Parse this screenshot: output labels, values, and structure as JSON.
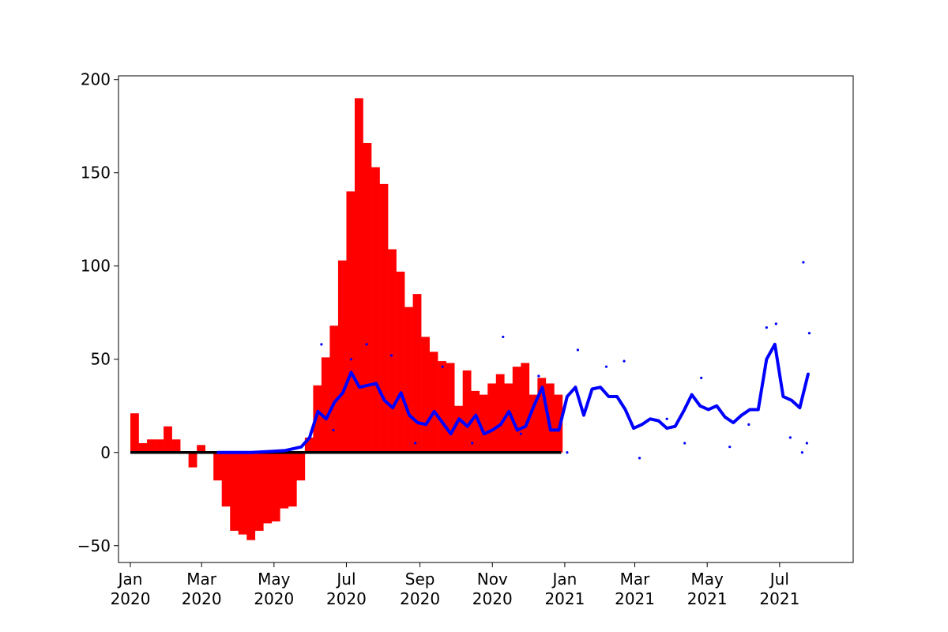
{
  "chart_data": {
    "type": "bar",
    "title": "",
    "xlabel": "",
    "ylabel": "",
    "grid": false,
    "legend": "none",
    "xlim": [
      "2019-12-22",
      "2021-09-01"
    ],
    "ylim": [
      -59,
      202
    ],
    "yticks": [
      -50,
      0,
      50,
      100,
      150,
      200
    ],
    "xticks": [
      {
        "date": "2020-01-01",
        "label_month": "Jan",
        "label_year": "2020"
      },
      {
        "date": "2020-03-01",
        "label_month": "Mar",
        "label_year": "2020"
      },
      {
        "date": "2020-05-01",
        "label_month": "May",
        "label_year": "2020"
      },
      {
        "date": "2020-07-01",
        "label_month": "Jul",
        "label_year": "2020"
      },
      {
        "date": "2020-09-01",
        "label_month": "Sep",
        "label_year": "2020"
      },
      {
        "date": "2020-11-01",
        "label_month": "Nov",
        "label_year": "2020"
      },
      {
        "date": "2021-01-01",
        "label_month": "Jan",
        "label_year": "2021"
      },
      {
        "date": "2021-03-01",
        "label_month": "Mar",
        "label_year": "2021"
      },
      {
        "date": "2021-05-01",
        "label_month": "May",
        "label_year": "2021"
      },
      {
        "date": "2021-07-01",
        "label_month": "Jul",
        "label_year": "2021"
      }
    ],
    "colors": {
      "bars": "#ff0000",
      "line": "#0000ff",
      "baseline": "#000000"
    },
    "bars": {
      "start": "2020-01-01",
      "bin_days": 7,
      "values": [
        21,
        5,
        7,
        7,
        14,
        7,
        0,
        -8,
        4,
        0,
        -15,
        -29,
        -42,
        -44,
        -47,
        -42,
        -38,
        -37,
        -30,
        -29,
        -15,
        8,
        36,
        51,
        68,
        103,
        140,
        190,
        166,
        153,
        144,
        109,
        97,
        78,
        85,
        62,
        54,
        49,
        48,
        25,
        44,
        33,
        31,
        37,
        42,
        37,
        46,
        48,
        31,
        40,
        37,
        31
      ]
    },
    "baseline": {
      "x_start": "2020-01-01",
      "x_end": "2020-12-29",
      "y": 0
    },
    "line": {
      "style": "thick",
      "x": [
        "2020-03-15",
        "2020-03-29",
        "2020-04-12",
        "2020-04-26",
        "2020-05-10",
        "2020-05-24",
        "2020-05-31",
        "2020-06-07",
        "2020-06-14",
        "2020-06-21",
        "2020-06-28",
        "2020-07-05",
        "2020-07-12",
        "2020-07-19",
        "2020-07-26",
        "2020-08-02",
        "2020-08-09",
        "2020-08-16",
        "2020-08-23",
        "2020-08-30",
        "2020-09-06",
        "2020-09-13",
        "2020-09-20",
        "2020-09-27",
        "2020-10-04",
        "2020-10-11",
        "2020-10-18",
        "2020-10-25",
        "2020-11-01",
        "2020-11-08",
        "2020-11-15",
        "2020-11-22",
        "2020-11-29",
        "2020-12-06",
        "2020-12-13",
        "2020-12-20",
        "2020-12-27",
        "2021-01-03",
        "2021-01-10",
        "2021-01-17",
        "2021-01-24",
        "2021-01-31",
        "2021-02-07",
        "2021-02-14",
        "2021-02-21",
        "2021-02-28",
        "2021-03-07",
        "2021-03-14",
        "2021-03-21",
        "2021-03-28",
        "2021-04-04",
        "2021-04-11",
        "2021-04-18",
        "2021-04-25",
        "2021-05-02",
        "2021-05-09",
        "2021-05-16",
        "2021-05-23",
        "2021-05-30",
        "2021-06-06",
        "2021-06-13",
        "2021-06-20",
        "2021-06-27",
        "2021-07-04",
        "2021-07-11",
        "2021-07-18",
        "2021-07-25"
      ],
      "y": [
        0,
        0,
        0,
        0.5,
        1,
        3,
        8,
        22,
        18,
        27,
        32,
        43,
        35,
        36,
        37,
        28,
        24,
        32,
        20,
        16,
        15,
        22,
        16,
        10,
        18,
        14,
        20,
        10,
        12,
        15,
        22,
        12,
        14,
        25,
        35,
        12,
        12,
        30,
        35,
        20,
        34,
        35,
        30,
        30,
        23,
        13,
        15,
        18,
        17,
        13,
        14,
        22,
        31,
        25,
        23,
        25,
        19,
        16,
        20,
        23,
        23,
        50,
        58,
        30,
        28,
        24,
        42
      ]
    },
    "scatter": {
      "x": [
        "2020-06-10",
        "2020-06-20",
        "2020-07-05",
        "2020-07-18",
        "2020-08-08",
        "2020-08-28",
        "2020-09-20",
        "2020-10-15",
        "2020-11-10",
        "2020-11-25",
        "2020-12-10",
        "2021-01-03",
        "2021-01-12",
        "2021-02-05",
        "2021-02-20",
        "2021-03-05",
        "2021-03-28",
        "2021-04-12",
        "2021-04-26",
        "2021-05-20",
        "2021-06-05",
        "2021-06-20",
        "2021-06-28",
        "2021-07-10",
        "2021-07-20",
        "2021-07-21",
        "2021-07-24",
        "2021-07-26"
      ],
      "y": [
        58,
        12,
        50,
        58,
        52,
        5,
        46,
        5,
        62,
        10,
        41,
        0,
        55,
        46,
        49,
        -3,
        18,
        5,
        40,
        3,
        15,
        67,
        69,
        8,
        0,
        102,
        5,
        64
      ]
    }
  }
}
